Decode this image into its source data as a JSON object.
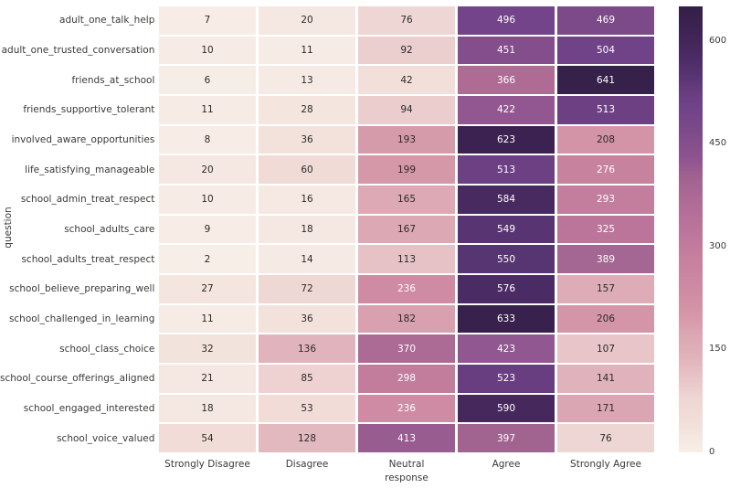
{
  "figure": {
    "background": "#ffffff"
  },
  "chart_data": {
    "type": "heatmap",
    "title": "",
    "xlabel": "",
    "ylabel": "question",
    "legend_position": "colorbar-right",
    "grid": false,
    "categories": [
      "Strongly Disagree",
      "Disagree",
      "Neutral\nresponse",
      "Agree",
      "Strongly Agree"
    ],
    "rows": [
      "adult_one_talk_help",
      "adult_one_trusted_conversation",
      "friends_at_school",
      "friends_supportive_tolerant",
      "involved_aware_opportunities",
      "life_satisfying_manageable",
      "school_admin_treat_respect",
      "school_adults_care",
      "school_adults_treat_respect",
      "school_believe_preparing_well",
      "school_challenged_in_learning",
      "school_class_choice",
      "school_course_offerings_aligned",
      "school_engaged_interested",
      "school_voice_valued"
    ],
    "values": [
      [
        7,
        20,
        76,
        496,
        469
      ],
      [
        10,
        11,
        92,
        451,
        504
      ],
      [
        6,
        13,
        42,
        366,
        641
      ],
      [
        11,
        28,
        94,
        422,
        513
      ],
      [
        8,
        36,
        193,
        623,
        208
      ],
      [
        20,
        60,
        199,
        513,
        276
      ],
      [
        10,
        16,
        165,
        584,
        293
      ],
      [
        9,
        18,
        167,
        549,
        325
      ],
      [
        2,
        14,
        113,
        550,
        389
      ],
      [
        27,
        72,
        236,
        576,
        157
      ],
      [
        11,
        36,
        182,
        633,
        206
      ],
      [
        32,
        136,
        370,
        423,
        107
      ],
      [
        21,
        85,
        298,
        523,
        141
      ],
      [
        18,
        53,
        236,
        590,
        171
      ],
      [
        54,
        128,
        413,
        397,
        76
      ]
    ],
    "colorbar": {
      "ticks": [
        0,
        150,
        300,
        450,
        600
      ],
      "vmin": 0,
      "vmax": 650
    },
    "colormap_stops": [
      [
        0,
        "#f8efe9"
      ],
      [
        40,
        "#f2e0da"
      ],
      [
        80,
        "#eed5d3"
      ],
      [
        110,
        "#e7c3c7"
      ],
      [
        140,
        "#e0b2bb"
      ],
      [
        170,
        "#dba7b3"
      ],
      [
        200,
        "#d597a9"
      ],
      [
        240,
        "#cd8aa2"
      ],
      [
        280,
        "#c6819e"
      ],
      [
        320,
        "#bc769a"
      ],
      [
        360,
        "#b06d96"
      ],
      [
        400,
        "#a06390"
      ],
      [
        430,
        "#8d5390"
      ],
      [
        470,
        "#7c4a88"
      ],
      [
        500,
        "#724389"
      ],
      [
        520,
        "#6a3f81"
      ],
      [
        550,
        "#573472"
      ],
      [
        580,
        "#492a62"
      ],
      [
        600,
        "#422658"
      ],
      [
        625,
        "#3a2250"
      ],
      [
        650,
        "#332046"
      ]
    ],
    "annotation_text_dark": "#2b2b2b",
    "annotation_text_light": "#ffffff",
    "luminance_threshold": 0.35
  }
}
